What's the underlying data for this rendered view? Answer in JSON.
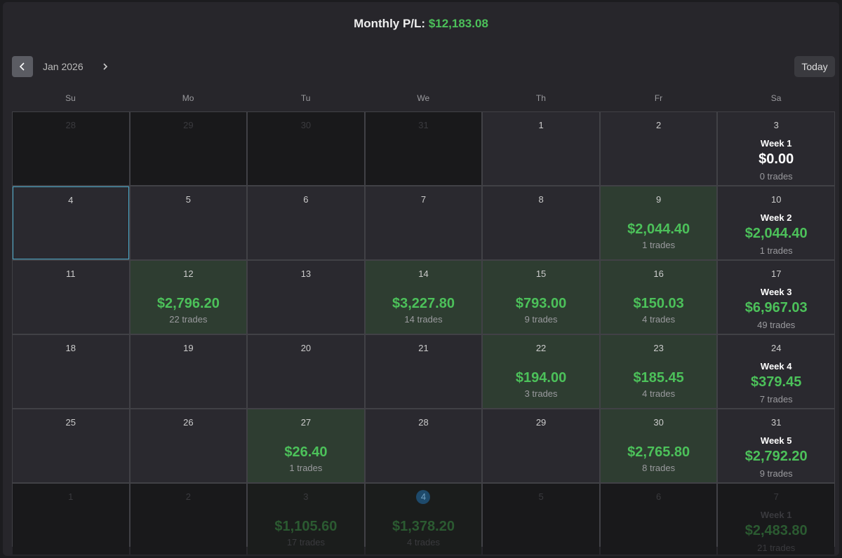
{
  "header": {
    "label": "Monthly P/L:",
    "value": "$12,183.08"
  },
  "nav": {
    "month": "Jan 2026",
    "today": "Today"
  },
  "weekdays": [
    "Su",
    "Mo",
    "Tu",
    "We",
    "Th",
    "Fr",
    "Sa"
  ],
  "weeks": [
    {
      "cells": [
        {
          "day": "28",
          "outside": true
        },
        {
          "day": "29",
          "outside": true
        },
        {
          "day": "30",
          "outside": true
        },
        {
          "day": "31",
          "outside": true
        },
        {
          "day": "1"
        },
        {
          "day": "2"
        },
        {
          "day": "3",
          "week": "Week 1",
          "pnl": "$0.00",
          "trades": "0 trades",
          "neutral": true
        }
      ]
    },
    {
      "cells": [
        {
          "day": "4",
          "selected": true
        },
        {
          "day": "5"
        },
        {
          "day": "6"
        },
        {
          "day": "7"
        },
        {
          "day": "8"
        },
        {
          "day": "9",
          "pnl": "$2,044.40",
          "trades": "1 trades",
          "profit": true
        },
        {
          "day": "10",
          "week": "Week 2",
          "pnl": "$2,044.40",
          "trades": "1 trades"
        }
      ]
    },
    {
      "cells": [
        {
          "day": "11"
        },
        {
          "day": "12",
          "pnl": "$2,796.20",
          "trades": "22 trades",
          "profit": true
        },
        {
          "day": "13"
        },
        {
          "day": "14",
          "pnl": "$3,227.80",
          "trades": "14 trades",
          "profit": true
        },
        {
          "day": "15",
          "pnl": "$793.00",
          "trades": "9 trades",
          "profit": true
        },
        {
          "day": "16",
          "pnl": "$150.03",
          "trades": "4 trades",
          "profit": true
        },
        {
          "day": "17",
          "week": "Week 3",
          "pnl": "$6,967.03",
          "trades": "49 trades"
        }
      ]
    },
    {
      "cells": [
        {
          "day": "18"
        },
        {
          "day": "19"
        },
        {
          "day": "20"
        },
        {
          "day": "21"
        },
        {
          "day": "22",
          "pnl": "$194.00",
          "trades": "3 trades",
          "profit": true
        },
        {
          "day": "23",
          "pnl": "$185.45",
          "trades": "4 trades",
          "profit": true
        },
        {
          "day": "24",
          "week": "Week 4",
          "pnl": "$379.45",
          "trades": "7 trades"
        }
      ]
    },
    {
      "cells": [
        {
          "day": "25"
        },
        {
          "day": "26"
        },
        {
          "day": "27",
          "pnl": "$26.40",
          "trades": "1 trades",
          "profit": true
        },
        {
          "day": "28"
        },
        {
          "day": "29"
        },
        {
          "day": "30",
          "pnl": "$2,765.80",
          "trades": "8 trades",
          "profit": true
        },
        {
          "day": "31",
          "week": "Week 5",
          "pnl": "$2,792.20",
          "trades": "9 trades"
        }
      ]
    },
    {
      "cells": [
        {
          "day": "1",
          "outside": true
        },
        {
          "day": "2",
          "outside": true
        },
        {
          "day": "3",
          "outside": true,
          "pnl": "$1,105.60",
          "trades": "17 trades",
          "profit": true
        },
        {
          "day": "4",
          "outside": true,
          "today": true,
          "pnl": "$1,378.20",
          "trades": "4 trades",
          "profit": true
        },
        {
          "day": "5",
          "outside": true
        },
        {
          "day": "6",
          "outside": true
        },
        {
          "day": "7",
          "outside": true,
          "week": "Week 1",
          "pnl": "$2,483.80",
          "trades": "21 trades"
        }
      ]
    }
  ]
}
